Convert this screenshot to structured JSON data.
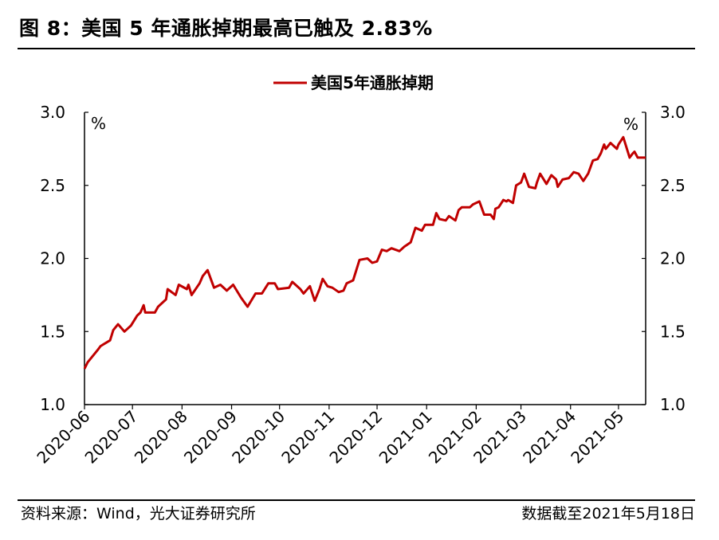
{
  "title": "图 8：美国 5 年通胀掉期最高已触及 2.83%",
  "footer": {
    "source": "资料来源：Wind，光大证券研究所",
    "date_note": "数据截至2021年5月18日"
  },
  "chart_data": {
    "type": "line",
    "title": "",
    "legend": {
      "entries": [
        "美国5年通胀掉期"
      ],
      "placement": "top-center"
    },
    "y_unit_left": "%",
    "y_unit_right": "%",
    "ylim": [
      1.0,
      3.0
    ],
    "yticks": [
      "1.0",
      "1.5",
      "2.0",
      "2.5",
      "3.0"
    ],
    "xlim": [
      "2020-06-01",
      "2021-05-18"
    ],
    "xticks": [
      "2020-06",
      "2020-07",
      "2020-08",
      "2020-09",
      "2020-10",
      "2020-11",
      "2020-12",
      "2021-01",
      "2021-02",
      "2021-03",
      "2021-04",
      "2021-05"
    ],
    "grid": false,
    "colors": {
      "series": "#C00000",
      "axis": "#000000"
    },
    "series": [
      {
        "name": "美国5年通胀掉期",
        "points": [
          [
            "2020-06-01",
            1.245
          ],
          [
            "2020-06-03",
            1.29
          ],
          [
            "2020-06-09",
            1.37
          ],
          [
            "2020-06-11",
            1.4
          ],
          [
            "2020-06-17",
            1.44
          ],
          [
            "2020-06-19",
            1.51
          ],
          [
            "2020-06-22",
            1.55
          ],
          [
            "2020-06-26",
            1.5
          ],
          [
            "2020-06-30",
            1.54
          ],
          [
            "2020-07-04",
            1.61
          ],
          [
            "2020-07-06",
            1.63
          ],
          [
            "2020-07-08",
            1.68
          ],
          [
            "2020-07-09",
            1.63
          ],
          [
            "2020-07-15",
            1.63
          ],
          [
            "2020-07-17",
            1.67
          ],
          [
            "2020-07-22",
            1.72
          ],
          [
            "2020-07-23",
            1.79
          ],
          [
            "2020-07-28",
            1.75
          ],
          [
            "2020-07-30",
            1.82
          ],
          [
            "2020-08-04",
            1.79
          ],
          [
            "2020-08-05",
            1.82
          ],
          [
            "2020-08-07",
            1.75
          ],
          [
            "2020-08-12",
            1.83
          ],
          [
            "2020-08-14",
            1.88
          ],
          [
            "2020-08-17",
            1.92
          ],
          [
            "2020-08-21",
            1.8
          ],
          [
            "2020-08-25",
            1.82
          ],
          [
            "2020-08-29",
            1.78
          ],
          [
            "2020-09-02",
            1.82
          ],
          [
            "2020-09-07",
            1.73
          ],
          [
            "2020-09-11",
            1.67
          ],
          [
            "2020-09-16",
            1.76
          ],
          [
            "2020-09-20",
            1.76
          ],
          [
            "2020-09-24",
            1.83
          ],
          [
            "2020-09-28",
            1.83
          ],
          [
            "2020-09-30",
            1.79
          ],
          [
            "2020-10-07",
            1.8
          ],
          [
            "2020-10-09",
            1.84
          ],
          [
            "2020-10-14",
            1.79
          ],
          [
            "2020-10-16",
            1.76
          ],
          [
            "2020-10-20",
            1.81
          ],
          [
            "2020-10-23",
            1.71
          ],
          [
            "2020-10-26",
            1.79
          ],
          [
            "2020-10-28",
            1.86
          ],
          [
            "2020-10-31",
            1.81
          ],
          [
            "2020-11-03",
            1.8
          ],
          [
            "2020-11-07",
            1.77
          ],
          [
            "2020-11-10",
            1.78
          ],
          [
            "2020-11-12",
            1.83
          ],
          [
            "2020-11-16",
            1.85
          ],
          [
            "2020-11-20",
            1.99
          ],
          [
            "2020-11-25",
            2.0
          ],
          [
            "2020-11-28",
            1.97
          ],
          [
            "2020-12-01",
            1.98
          ],
          [
            "2020-12-04",
            2.06
          ],
          [
            "2020-12-07",
            2.05
          ],
          [
            "2020-12-10",
            2.07
          ],
          [
            "2020-12-15",
            2.05
          ],
          [
            "2020-12-18",
            2.08
          ],
          [
            "2020-12-22",
            2.11
          ],
          [
            "2020-12-25",
            2.21
          ],
          [
            "2020-12-29",
            2.19
          ],
          [
            "2020-12-31",
            2.23
          ],
          [
            "2021-01-05",
            2.23
          ],
          [
            "2021-01-07",
            2.31
          ],
          [
            "2021-01-09",
            2.27
          ],
          [
            "2021-01-13",
            2.26
          ],
          [
            "2021-01-15",
            2.29
          ],
          [
            "2021-01-19",
            2.26
          ],
          [
            "2021-01-21",
            2.33
          ],
          [
            "2021-01-23",
            2.35
          ],
          [
            "2021-01-28",
            2.35
          ],
          [
            "2021-01-30",
            2.37
          ],
          [
            "2021-02-03",
            2.39
          ],
          [
            "2021-02-06",
            2.3
          ],
          [
            "2021-02-10",
            2.3
          ],
          [
            "2021-02-12",
            2.27
          ],
          [
            "2021-02-13",
            2.34
          ],
          [
            "2021-02-15",
            2.35
          ],
          [
            "2021-02-18",
            2.4
          ],
          [
            "2021-02-20",
            2.39
          ],
          [
            "2021-02-21",
            2.4
          ],
          [
            "2021-02-24",
            2.38
          ],
          [
            "2021-02-26",
            2.5
          ],
          [
            "2021-03-01",
            2.52
          ],
          [
            "2021-03-03",
            2.58
          ],
          [
            "2021-03-06",
            2.49
          ],
          [
            "2021-03-10",
            2.48
          ],
          [
            "2021-03-11",
            2.52
          ],
          [
            "2021-03-13",
            2.58
          ],
          [
            "2021-03-17",
            2.51
          ],
          [
            "2021-03-20",
            2.57
          ],
          [
            "2021-03-23",
            2.54
          ],
          [
            "2021-03-24",
            2.49
          ],
          [
            "2021-03-27",
            2.54
          ],
          [
            "2021-03-31",
            2.55
          ],
          [
            "2021-04-03",
            2.59
          ],
          [
            "2021-04-06",
            2.58
          ],
          [
            "2021-04-09",
            2.53
          ],
          [
            "2021-04-12",
            2.58
          ],
          [
            "2021-04-15",
            2.67
          ],
          [
            "2021-04-18",
            2.68
          ],
          [
            "2021-04-20",
            2.72
          ],
          [
            "2021-04-22",
            2.78
          ],
          [
            "2021-04-23",
            2.75
          ],
          [
            "2021-04-26",
            2.79
          ],
          [
            "2021-04-30",
            2.75
          ],
          [
            "2021-05-01",
            2.78
          ],
          [
            "2021-05-04",
            2.83
          ],
          [
            "2021-05-08",
            2.69
          ],
          [
            "2021-05-10",
            2.72
          ],
          [
            "2021-05-11",
            2.73
          ],
          [
            "2021-05-13",
            2.69
          ],
          [
            "2021-05-18",
            2.69
          ]
        ]
      }
    ]
  }
}
